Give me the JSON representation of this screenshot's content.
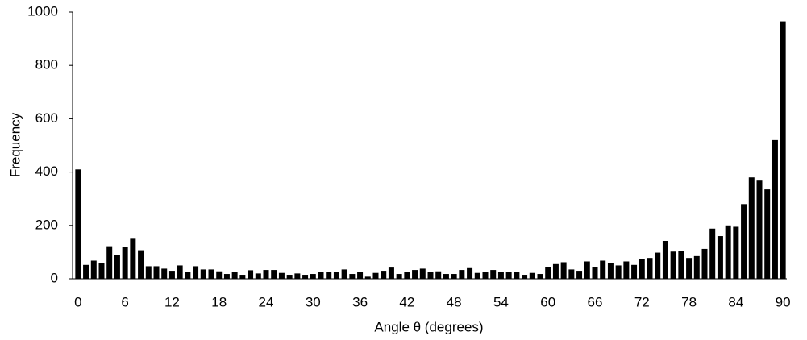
{
  "chart_data": {
    "type": "bar",
    "x_label": "Angle θ (degrees)",
    "y_label": "Frequency",
    "categories": [
      0,
      null,
      null,
      null,
      null,
      null,
      6,
      null,
      null,
      null,
      null,
      null,
      12,
      null,
      null,
      null,
      null,
      null,
      18,
      null,
      null,
      null,
      null,
      null,
      24,
      null,
      null,
      null,
      null,
      null,
      30,
      null,
      null,
      null,
      null,
      null,
      36,
      null,
      null,
      null,
      null,
      null,
      42,
      null,
      null,
      null,
      null,
      null,
      48,
      null,
      null,
      null,
      null,
      null,
      54,
      null,
      null,
      null,
      null,
      null,
      60,
      null,
      null,
      null,
      null,
      null,
      66,
      null,
      null,
      null,
      null,
      null,
      72,
      null,
      null,
      null,
      null,
      null,
      78,
      null,
      null,
      null,
      null,
      null,
      84,
      null,
      null,
      null,
      null,
      null,
      90
    ],
    "values": [
      410,
      52,
      68,
      60,
      122,
      88,
      120,
      150,
      107,
      47,
      47,
      38,
      30,
      50,
      25,
      47,
      35,
      35,
      28,
      18,
      27,
      15,
      32,
      20,
      33,
      33,
      22,
      15,
      20,
      15,
      18,
      25,
      25,
      27,
      35,
      18,
      27,
      8,
      22,
      30,
      42,
      18,
      27,
      33,
      38,
      25,
      28,
      18,
      18,
      33,
      40,
      22,
      27,
      33,
      27,
      25,
      27,
      15,
      22,
      18,
      45,
      55,
      62,
      35,
      30,
      65,
      45,
      68,
      58,
      50,
      65,
      52,
      75,
      78,
      98,
      142,
      102,
      105,
      78,
      85,
      112,
      188,
      160,
      200,
      195,
      280,
      380,
      368,
      335,
      520,
      965
    ],
    "color": "#000000",
    "ylim": [
      0,
      1000
    ],
    "yticks": [
      0,
      200,
      400,
      600,
      800,
      1000
    ],
    "grid": false
  }
}
